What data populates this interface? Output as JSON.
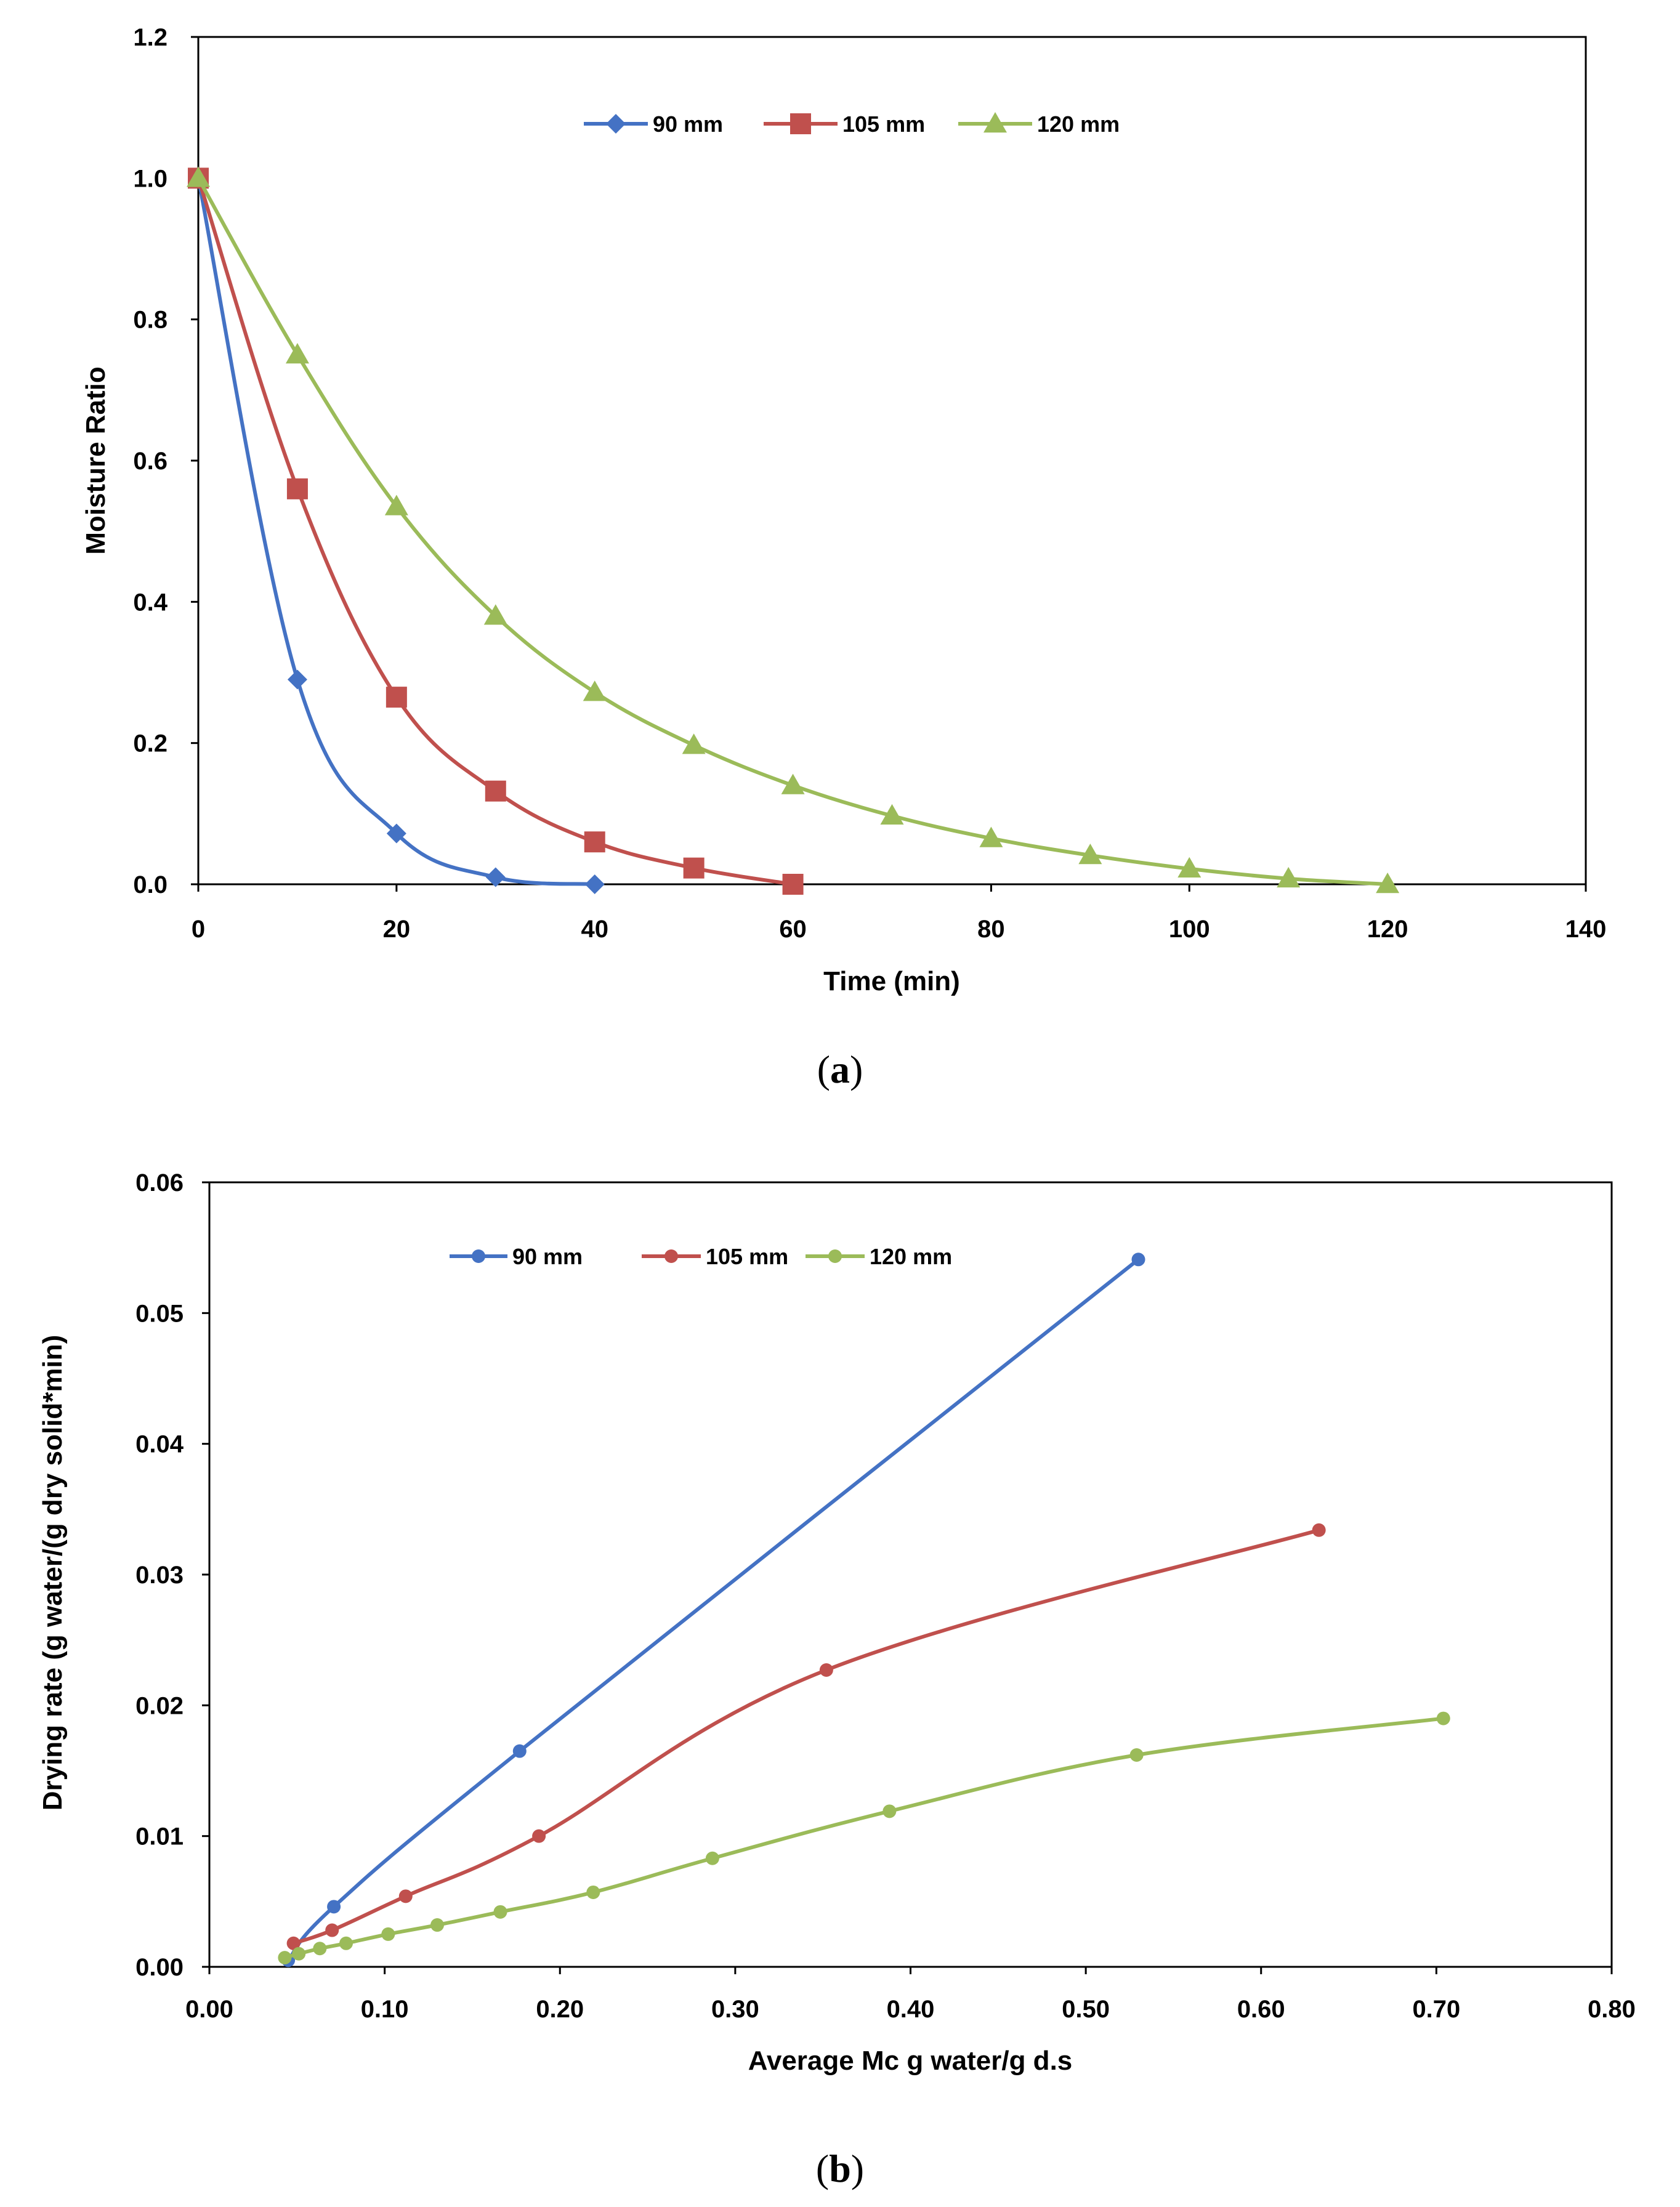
{
  "figure": {
    "caption_a": "a",
    "caption_b": "b"
  },
  "chart_data": [
    {
      "type": "line",
      "panel": "a",
      "title": "",
      "xlabel": "Time (min)",
      "ylabel": "Moisture Ratio",
      "xlim": [
        0,
        140
      ],
      "ylim": [
        0,
        1.2
      ],
      "xticks": [
        "0",
        "20",
        "40",
        "60",
        "80",
        "100",
        "120",
        "140"
      ],
      "yticks": [
        "0.0",
        "0.2",
        "0.4",
        "0.6",
        "0.8",
        "1.0",
        "1.2"
      ],
      "legend_position": "top-center",
      "series": [
        {
          "name": "90 mm",
          "color": "#4472C4",
          "marker": "diamond",
          "x": [
            0,
            10,
            20,
            30,
            40
          ],
          "y": [
            1.0,
            0.29,
            0.072,
            0.01,
            0.0
          ]
        },
        {
          "name": "105 mm",
          "color": "#C0504D",
          "marker": "square",
          "x": [
            0,
            10,
            20,
            30,
            40,
            50,
            60
          ],
          "y": [
            1.0,
            0.56,
            0.265,
            0.132,
            0.06,
            0.023,
            0.0
          ]
        },
        {
          "name": "120 mm",
          "color": "#9BBB59",
          "marker": "triangle",
          "x": [
            0,
            10,
            20,
            30,
            40,
            50,
            60,
            70,
            80,
            90,
            100,
            110,
            120
          ],
          "y": [
            1.0,
            0.75,
            0.535,
            0.38,
            0.272,
            0.197,
            0.14,
            0.097,
            0.065,
            0.041,
            0.022,
            0.008,
            0.0
          ]
        }
      ]
    },
    {
      "type": "line",
      "panel": "b",
      "title": "",
      "xlabel": "Average Mc g water/g d.s",
      "ylabel": "Drying rate   (g water/(g dry solid*min)",
      "xlim": [
        0,
        0.8
      ],
      "ylim": [
        0,
        0.06
      ],
      "xticks": [
        "0.00",
        "0.10",
        "0.20",
        "0.30",
        "0.40",
        "0.50",
        "0.60",
        "0.70",
        "0.80"
      ],
      "yticks": [
        "0.00",
        "0.01",
        "0.02",
        "0.03",
        "0.04",
        "0.05",
        "0.06"
      ],
      "legend_position": "top-left",
      "series": [
        {
          "name": "90 mm",
          "color": "#4472C4",
          "marker": "circle",
          "x": [
            0.045,
            0.071,
            0.177,
            0.53
          ],
          "y": [
            0.0005,
            0.0046,
            0.0165,
            0.0541
          ]
        },
        {
          "name": "105 mm",
          "color": "#C0504D",
          "marker": "circle",
          "x": [
            0.048,
            0.07,
            0.112,
            0.188,
            0.352,
            0.633
          ],
          "y": [
            0.0018,
            0.0028,
            0.0054,
            0.01,
            0.0227,
            0.0334
          ]
        },
        {
          "name": "120 mm",
          "color": "#9BBB59",
          "marker": "circle",
          "x": [
            0.043,
            0.051,
            0.063,
            0.078,
            0.102,
            0.13,
            0.166,
            0.219,
            0.287,
            0.388,
            0.529,
            0.704
          ],
          "y": [
            0.0007,
            0.001,
            0.0014,
            0.0018,
            0.0025,
            0.0032,
            0.0042,
            0.0057,
            0.0083,
            0.0119,
            0.0162,
            0.019
          ]
        }
      ]
    }
  ]
}
